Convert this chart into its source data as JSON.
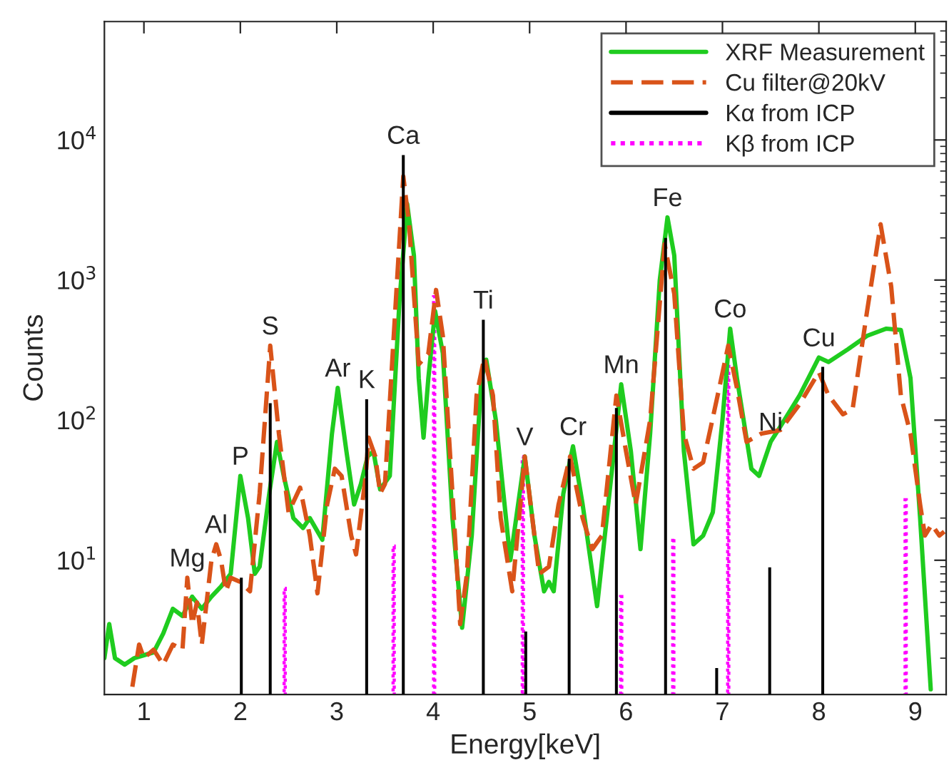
{
  "chart_data": {
    "type": "line",
    "xlabel": "Energy[keV]",
    "ylabel": "Counts",
    "log": "y",
    "xlim": [
      0.59,
      9.32
    ],
    "xticks": [
      1,
      2,
      3,
      4,
      5,
      6,
      7,
      8,
      9
    ],
    "ylim": [
      1.1,
      70000
    ],
    "yticks": [
      {
        "value": 10,
        "label": "10$^{1}$"
      },
      {
        "value": 100,
        "label": "10$^{2}$"
      },
      {
        "value": 1000,
        "label": "10$^{3}$"
      },
      {
        "value": 10000,
        "label": "10$^{4}$"
      }
    ],
    "grid": false,
    "legend": "top right",
    "series": [
      {
        "name": "XRF Measurement",
        "line_style": "solid",
        "color": "#1fcc1f",
        "x": [
          0.59,
          0.64,
          0.7,
          0.8,
          0.9,
          1.0,
          1.1,
          1.2,
          1.3,
          1.4,
          1.5,
          1.6,
          1.7,
          1.8,
          1.9,
          2.0,
          2.08,
          2.15,
          2.2,
          2.3,
          2.38,
          2.45,
          2.55,
          2.65,
          2.72,
          2.85,
          2.95,
          3.01,
          3.1,
          3.18,
          3.25,
          3.32,
          3.38,
          3.45,
          3.55,
          3.65,
          3.73,
          3.8,
          3.85,
          3.9,
          3.95,
          4.02,
          4.1,
          4.2,
          4.3,
          4.4,
          4.5,
          4.55,
          4.65,
          4.8,
          4.95,
          5.05,
          5.15,
          5.2,
          5.25,
          5.35,
          5.45,
          5.55,
          5.7,
          5.8,
          5.95,
          6.05,
          6.15,
          6.25,
          6.35,
          6.43,
          6.5,
          6.6,
          6.7,
          6.8,
          6.9,
          7.0,
          7.08,
          7.15,
          7.3,
          7.38,
          7.5,
          7.6,
          7.8,
          8.0,
          8.1,
          8.3,
          8.5,
          8.7,
          8.85,
          8.95,
          9.05,
          9.16
        ],
        "values": [
          2.0,
          3.5,
          2.0,
          1.8,
          2.0,
          2.1,
          2.2,
          3.0,
          4.5,
          4.0,
          5.5,
          4.5,
          5.5,
          6.5,
          8,
          40,
          20,
          8,
          9,
          30,
          70,
          40,
          20,
          17,
          20,
          14,
          80,
          170,
          60,
          25,
          35,
          55,
          60,
          32,
          40,
          700,
          3500,
          1500,
          200,
          75,
          200,
          600,
          300,
          20,
          3.3,
          15,
          200,
          270,
          100,
          10,
          55,
          15,
          6,
          7,
          6,
          30,
          65,
          25,
          4.7,
          20,
          180,
          60,
          12,
          80,
          1000,
          2800,
          1500,
          60,
          13,
          15,
          22,
          100,
          450,
          200,
          45,
          40,
          70,
          90,
          150,
          280,
          260,
          320,
          400,
          450,
          440,
          200,
          20,
          1.2
        ]
      },
      {
        "name": "Cu filter@20kV",
        "line_style": "dashed",
        "color": "#d95319",
        "x": [
          0.88,
          0.95,
          1.0,
          1.1,
          1.2,
          1.3,
          1.4,
          1.45,
          1.5,
          1.55,
          1.6,
          1.7,
          1.75,
          1.8,
          1.85,
          1.9,
          2.0,
          2.1,
          2.2,
          2.31,
          2.4,
          2.5,
          2.62,
          2.72,
          2.8,
          2.9,
          2.98,
          3.05,
          3.15,
          3.2,
          3.3,
          3.33,
          3.4,
          3.45,
          3.5,
          3.58,
          3.69,
          3.75,
          3.85,
          3.95,
          4.03,
          4.1,
          4.2,
          4.28,
          4.35,
          4.45,
          4.53,
          4.62,
          4.7,
          4.82,
          4.95,
          5.05,
          5.1,
          5.2,
          5.3,
          5.42,
          5.55,
          5.65,
          5.75,
          5.9,
          6.0,
          6.1,
          6.25,
          6.4,
          6.5,
          6.6,
          6.7,
          6.8,
          6.95,
          7.06,
          7.15,
          7.25,
          7.4,
          7.6,
          7.8,
          8.0,
          8.1,
          8.25,
          8.35,
          8.5,
          8.64,
          8.75,
          8.85,
          8.95,
          9.05,
          9.1,
          9.17,
          9.25,
          9.3
        ],
        "values": [
          1.25,
          2.5,
          2.0,
          2.3,
          1.8,
          2.5,
          2.3,
          7.5,
          3.5,
          5,
          2.5,
          10,
          13,
          10,
          6,
          7.5,
          7,
          6,
          30,
          340,
          80,
          22,
          33,
          15,
          5.8,
          25,
          45,
          40,
          15,
          11,
          40,
          75,
          55,
          30,
          35,
          300,
          5500,
          2500,
          250,
          300,
          850,
          400,
          30,
          3.5,
          8,
          150,
          280,
          150,
          20,
          6,
          55,
          15,
          8,
          9,
          25,
          55,
          20,
          12,
          15,
          150,
          60,
          25,
          100,
          1800,
          800,
          80,
          45,
          50,
          150,
          340,
          170,
          70,
          80,
          85,
          130,
          220,
          150,
          110,
          120,
          600,
          2500,
          900,
          150,
          80,
          25,
          15,
          18,
          15,
          16
        ]
      },
      {
        "name": "Kα from ICP",
        "type": "bar",
        "line_style": "solid",
        "color": "#000000",
        "x": [
          2.01,
          2.31,
          3.31,
          3.69,
          4.52,
          4.96,
          5.41,
          5.9,
          6.41,
          6.94,
          7.49,
          8.04
        ],
        "values": [
          7.5,
          132,
          141,
          7800,
          520,
          3.1,
          53,
          122,
          2000,
          1.7,
          8.9,
          240
        ]
      },
      {
        "name": "Kβ from ICP",
        "type": "bar",
        "line_style": "dotted",
        "color": "#ff00ff",
        "x": [
          2.46,
          3.59,
          4.01,
          4.93,
          5.95,
          6.49,
          7.06,
          8.9
        ],
        "values": [
          6.3,
          12.6,
          760,
          55,
          5.5,
          14.5,
          260,
          27
        ]
      }
    ],
    "annotations": [
      {
        "text": "Mg",
        "x": 1.45,
        "y": 7.5
      },
      {
        "text": "Al",
        "x": 1.75,
        "y": 13
      },
      {
        "text": "P",
        "x": 2.0,
        "y": 40
      },
      {
        "text": "S",
        "x": 2.31,
        "y": 340
      },
      {
        "text": "Ar",
        "x": 3.01,
        "y": 170
      },
      {
        "text": "K",
        "x": 3.31,
        "y": 141
      },
      {
        "text": "Ca",
        "x": 3.69,
        "y": 7800
      },
      {
        "text": "Ti",
        "x": 4.52,
        "y": 520
      },
      {
        "text": "V",
        "x": 4.95,
        "y": 55
      },
      {
        "text": "Cr",
        "x": 5.45,
        "y": 65
      },
      {
        "text": "Mn",
        "x": 5.95,
        "y": 180
      },
      {
        "text": "Fe",
        "x": 6.43,
        "y": 2800
      },
      {
        "text": "Co",
        "x": 7.08,
        "y": 450
      },
      {
        "text": "Ni",
        "x": 7.5,
        "y": 70
      },
      {
        "text": "Cu",
        "x": 8.0,
        "y": 280
      }
    ]
  }
}
